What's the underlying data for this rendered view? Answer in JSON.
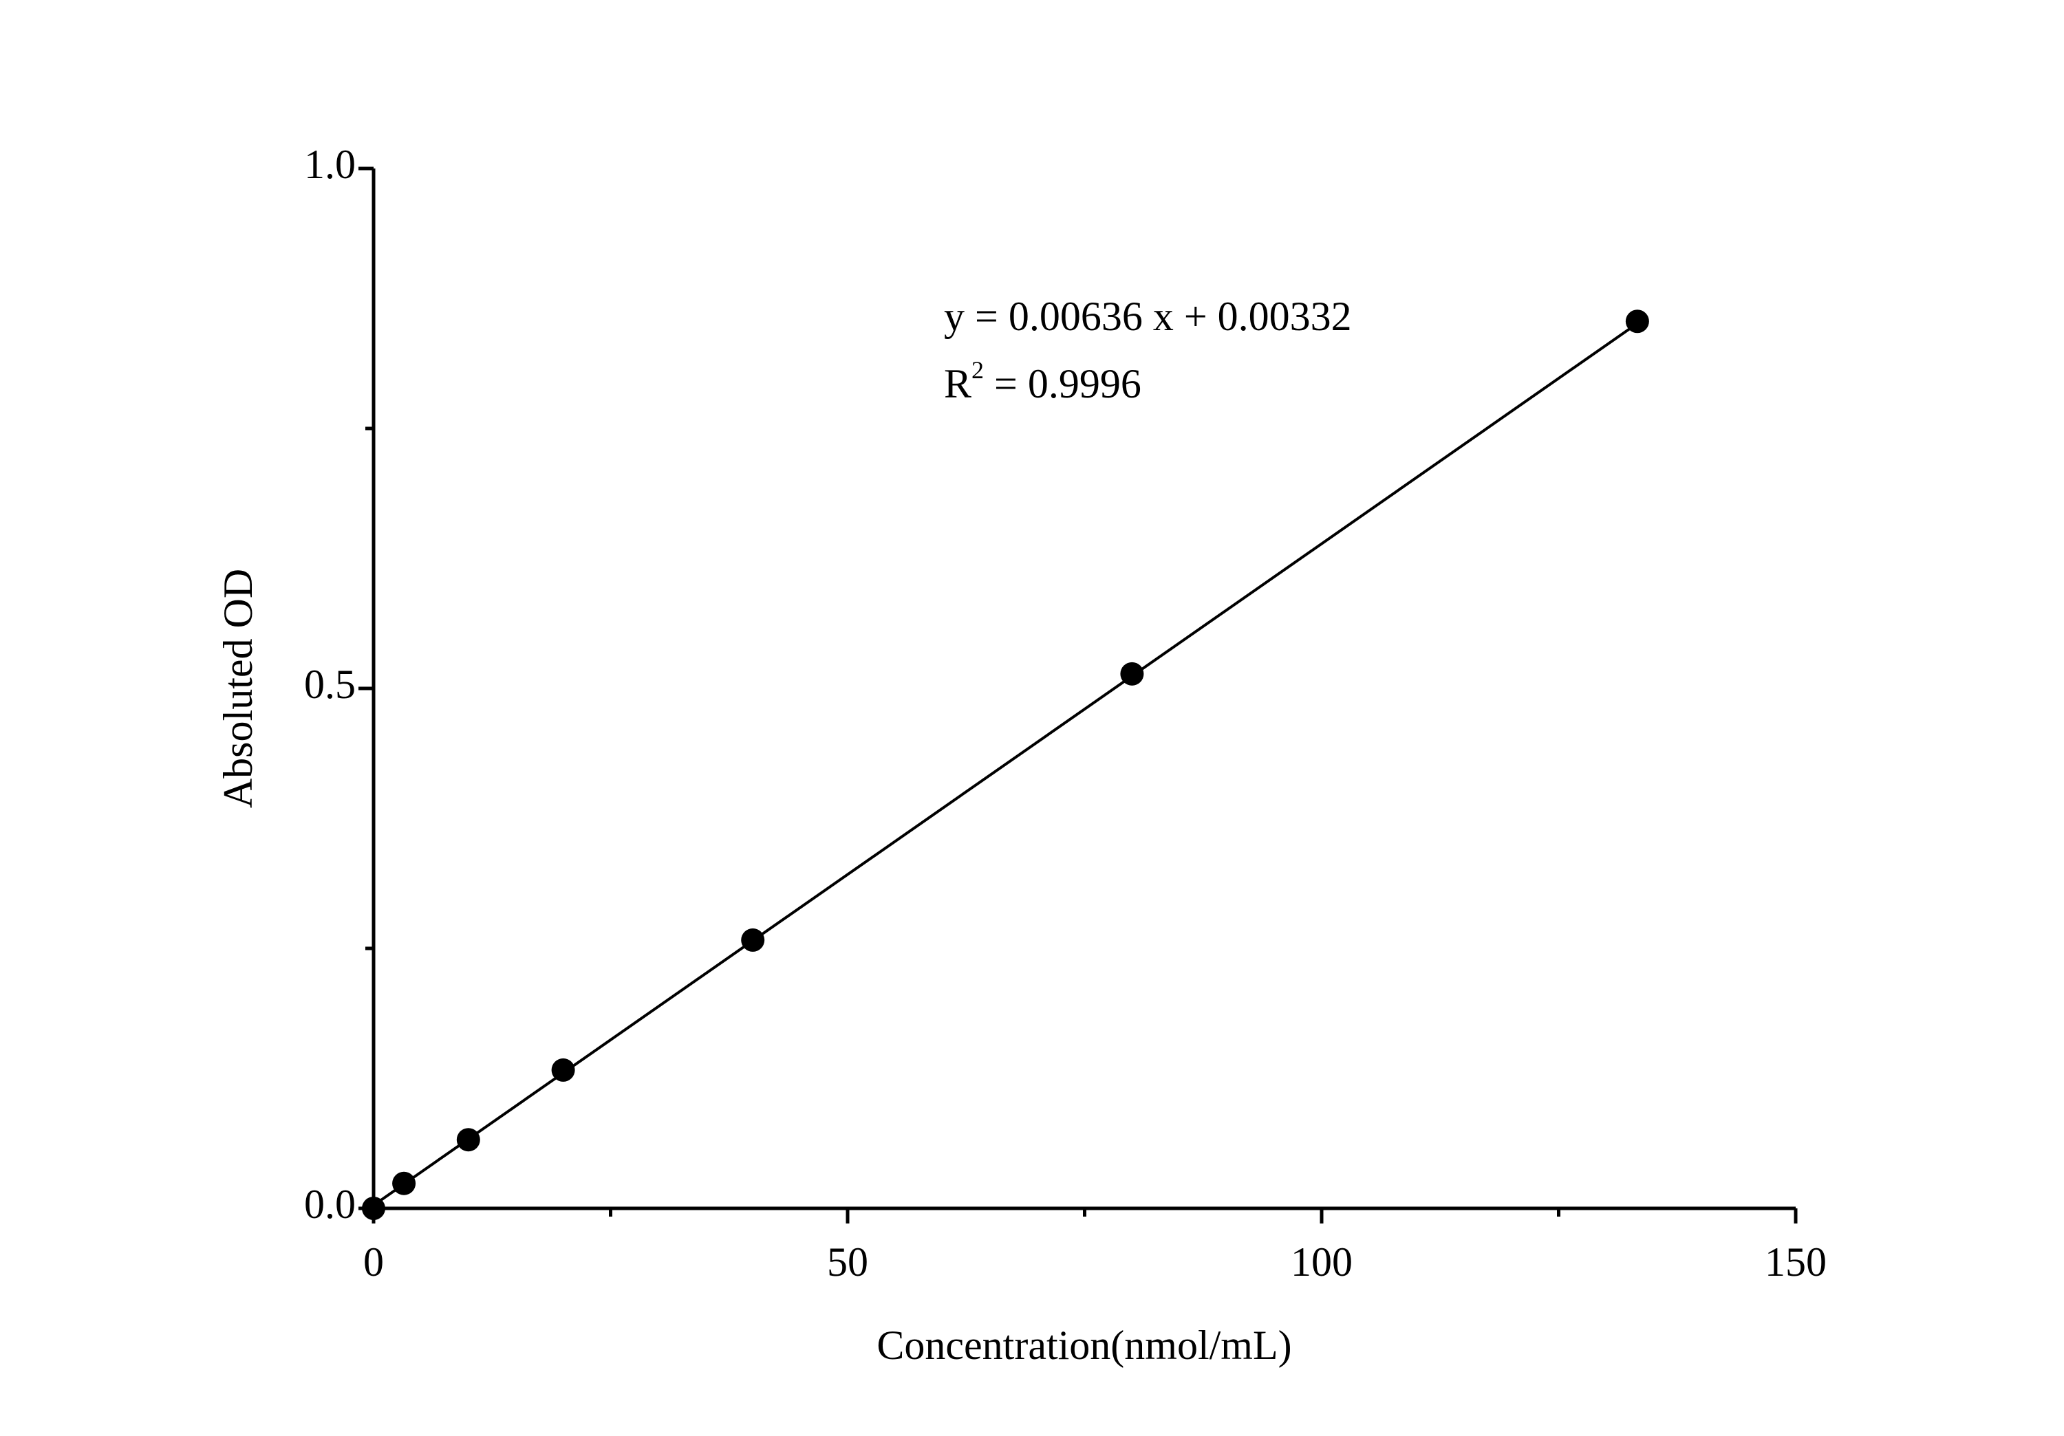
{
  "chart_data": {
    "type": "scatter",
    "x_label": "Concentration(nmol/mL)",
    "y_label": "Absoluted OD",
    "x": [
      0,
      3.2,
      10,
      20,
      40,
      80,
      133.3
    ],
    "values": [
      0,
      0.024,
      0.066,
      0.133,
      0.258,
      0.514,
      0.853
    ],
    "color": "#000000",
    "fit_line": {
      "x": [
        0,
        133.3
      ],
      "y": [
        0.003,
        0.851
      ]
    },
    "annotations": [
      "y = 0.00636 x + 0.00332",
      "R",
      "2",
      " = 0.9996"
    ],
    "xlim": [
      0,
      150
    ],
    "xticks": [
      0,
      50,
      100,
      150
    ],
    "xminor": [
      25,
      75,
      125
    ],
    "ylim": [
      0,
      1
    ],
    "yticks": [
      {
        "value": 0,
        "label": "0.0"
      },
      0.5,
      {
        "value": 1,
        "label": "1.0"
      }
    ],
    "yminor": [
      0.25,
      0.75
    ],
    "grid": false
  }
}
